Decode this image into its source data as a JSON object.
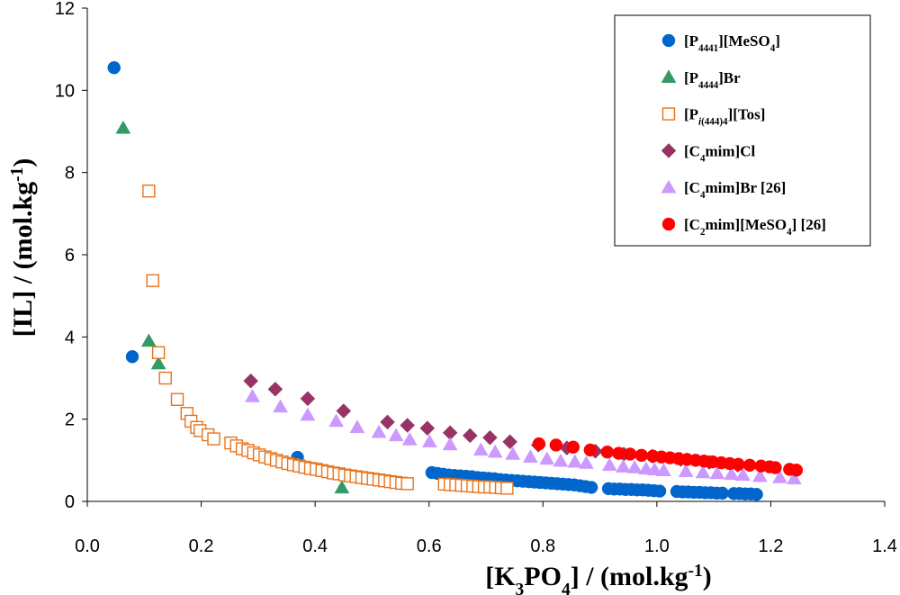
{
  "chart_data": {
    "type": "scatter",
    "title": "",
    "xlabel": {
      "main": "[K",
      "sub": "3",
      "mid": "PO",
      "sub2": "4",
      "tail": "] / (mol.kg",
      "sup": "-1",
      "end": ")"
    },
    "ylabel": {
      "main": "[IL] / (mol.kg",
      "sup": "-1",
      "end": ")"
    },
    "xlim": [
      0,
      1.4
    ],
    "ylim": [
      0,
      12
    ],
    "xticks": [
      "0.0",
      "0.2",
      "0.4",
      "0.6",
      "0.8",
      "1.0",
      "1.2",
      "1.4"
    ],
    "yticks": [
      "0",
      "2",
      "4",
      "6",
      "8",
      "10",
      "12"
    ],
    "grid": false,
    "legend_position": "top-right",
    "series": [
      {
        "name": "[P4441][MeSO4]",
        "label_parts": [
          [
            "[P",
            ""
          ],
          [
            "4441",
            "sub"
          ],
          [
            "][MeSO",
            ""
          ],
          [
            "4",
            "sub"
          ],
          [
            "]",
            ""
          ]
        ],
        "marker": "circle",
        "color": "#0066CC",
        "filled": true,
        "points": [
          [
            0.047,
            10.55
          ],
          [
            0.079,
            3.52
          ],
          [
            0.369,
            1.07
          ],
          [
            0.605,
            0.7
          ],
          [
            0.615,
            0.68
          ],
          [
            0.625,
            0.66
          ],
          [
            0.635,
            0.64
          ],
          [
            0.645,
            0.63
          ],
          [
            0.655,
            0.62
          ],
          [
            0.665,
            0.61
          ],
          [
            0.675,
            0.6
          ],
          [
            0.685,
            0.58
          ],
          [
            0.695,
            0.57
          ],
          [
            0.705,
            0.56
          ],
          [
            0.715,
            0.55
          ],
          [
            0.725,
            0.53
          ],
          [
            0.735,
            0.52
          ],
          [
            0.745,
            0.51
          ],
          [
            0.755,
            0.5
          ],
          [
            0.765,
            0.49
          ],
          [
            0.775,
            0.48
          ],
          [
            0.785,
            0.47
          ],
          [
            0.795,
            0.46
          ],
          [
            0.805,
            0.45
          ],
          [
            0.815,
            0.44
          ],
          [
            0.825,
            0.43
          ],
          [
            0.835,
            0.42
          ],
          [
            0.845,
            0.41
          ],
          [
            0.855,
            0.4
          ],
          [
            0.865,
            0.38
          ],
          [
            0.875,
            0.36
          ],
          [
            0.885,
            0.34
          ],
          [
            0.915,
            0.31
          ],
          [
            0.925,
            0.3
          ],
          [
            0.935,
            0.3
          ],
          [
            0.945,
            0.29
          ],
          [
            0.955,
            0.29
          ],
          [
            0.965,
            0.28
          ],
          [
            0.975,
            0.28
          ],
          [
            0.985,
            0.27
          ],
          [
            0.995,
            0.26
          ],
          [
            1.005,
            0.25
          ],
          [
            1.035,
            0.24
          ],
          [
            1.045,
            0.23
          ],
          [
            1.055,
            0.23
          ],
          [
            1.065,
            0.22
          ],
          [
            1.075,
            0.22
          ],
          [
            1.085,
            0.21
          ],
          [
            1.095,
            0.21
          ],
          [
            1.105,
            0.2
          ],
          [
            1.115,
            0.2
          ],
          [
            1.135,
            0.19
          ],
          [
            1.145,
            0.19
          ],
          [
            1.155,
            0.18
          ],
          [
            1.165,
            0.18
          ],
          [
            1.175,
            0.17
          ]
        ]
      },
      {
        "name": "[P4444]Br",
        "label_parts": [
          [
            "[P",
            ""
          ],
          [
            "4444",
            "sub"
          ],
          [
            "]Br",
            ""
          ]
        ],
        "marker": "triangle",
        "color": "#339966",
        "filled": true,
        "points": [
          [
            0.063,
            9.08
          ],
          [
            0.108,
            3.9
          ],
          [
            0.125,
            3.35
          ],
          [
            0.447,
            0.33
          ]
        ]
      },
      {
        "name": "[Pi(444)4][Tos]",
        "label_parts": [
          [
            "[P",
            ""
          ],
          [
            "i",
            "sub-italic"
          ],
          [
            "(444)4",
            "sub"
          ],
          [
            "][Tos]",
            ""
          ]
        ],
        "marker": "square",
        "color": "#E8731A",
        "filled": false,
        "points": [
          [
            0.108,
            7.55
          ],
          [
            0.115,
            5.37
          ],
          [
            0.125,
            3.62
          ],
          [
            0.137,
            3.0
          ],
          [
            0.158,
            2.48
          ],
          [
            0.175,
            2.14
          ],
          [
            0.182,
            1.95
          ],
          [
            0.192,
            1.8
          ],
          [
            0.198,
            1.72
          ],
          [
            0.212,
            1.62
          ],
          [
            0.222,
            1.52
          ],
          [
            0.252,
            1.42
          ],
          [
            0.262,
            1.35
          ],
          [
            0.272,
            1.28
          ],
          [
            0.282,
            1.24
          ],
          [
            0.292,
            1.18
          ],
          [
            0.302,
            1.13
          ],
          [
            0.312,
            1.08
          ],
          [
            0.322,
            1.04
          ],
          [
            0.332,
            1.0
          ],
          [
            0.342,
            0.96
          ],
          [
            0.352,
            0.92
          ],
          [
            0.362,
            0.89
          ],
          [
            0.372,
            0.86
          ],
          [
            0.382,
            0.83
          ],
          [
            0.392,
            0.8
          ],
          [
            0.402,
            0.78
          ],
          [
            0.412,
            0.75
          ],
          [
            0.422,
            0.72
          ],
          [
            0.432,
            0.69
          ],
          [
            0.442,
            0.67
          ],
          [
            0.452,
            0.64
          ],
          [
            0.462,
            0.62
          ],
          [
            0.472,
            0.6
          ],
          [
            0.482,
            0.58
          ],
          [
            0.492,
            0.56
          ],
          [
            0.502,
            0.54
          ],
          [
            0.512,
            0.52
          ],
          [
            0.522,
            0.5
          ],
          [
            0.532,
            0.48
          ],
          [
            0.542,
            0.46
          ],
          [
            0.552,
            0.44
          ],
          [
            0.562,
            0.43
          ],
          [
            0.627,
            0.42
          ],
          [
            0.637,
            0.41
          ],
          [
            0.647,
            0.4
          ],
          [
            0.657,
            0.39
          ],
          [
            0.667,
            0.38
          ],
          [
            0.677,
            0.37
          ],
          [
            0.687,
            0.36
          ],
          [
            0.697,
            0.35
          ],
          [
            0.707,
            0.35
          ],
          [
            0.717,
            0.34
          ],
          [
            0.727,
            0.33
          ],
          [
            0.737,
            0.32
          ]
        ]
      },
      {
        "name": "[C4mim]Cl",
        "label_parts": [
          [
            "[C",
            ""
          ],
          [
            "4",
            "sub"
          ],
          [
            "mim]Cl",
            ""
          ]
        ],
        "marker": "diamond",
        "color": "#993366",
        "filled": true,
        "points": [
          [
            0.287,
            2.93
          ],
          [
            0.33,
            2.73
          ],
          [
            0.387,
            2.5
          ],
          [
            0.45,
            2.2
          ],
          [
            0.527,
            1.93
          ],
          [
            0.562,
            1.85
          ],
          [
            0.597,
            1.78
          ],
          [
            0.637,
            1.67
          ],
          [
            0.672,
            1.6
          ],
          [
            0.707,
            1.55
          ],
          [
            0.742,
            1.45
          ],
          [
            0.792,
            1.37
          ],
          [
            0.842,
            1.3
          ],
          [
            0.892,
            1.22
          ],
          [
            0.942,
            1.15
          ],
          [
            0.992,
            1.1
          ],
          [
            1.042,
            1.02
          ],
          [
            1.092,
            0.95
          ],
          [
            1.142,
            0.88
          ]
        ]
      },
      {
        "name": "[C4mim]Br [26]",
        "label_parts": [
          [
            "[C",
            ""
          ],
          [
            "4",
            "sub"
          ],
          [
            "mim]Br [26]",
            ""
          ]
        ],
        "marker": "triangle",
        "color": "#CC99FF",
        "filled": true,
        "points": [
          [
            0.29,
            2.55
          ],
          [
            0.339,
            2.3
          ],
          [
            0.387,
            2.1
          ],
          [
            0.437,
            1.95
          ],
          [
            0.474,
            1.8
          ],
          [
            0.512,
            1.68
          ],
          [
            0.542,
            1.6
          ],
          [
            0.566,
            1.5
          ],
          [
            0.601,
            1.45
          ],
          [
            0.637,
            1.38
          ],
          [
            0.691,
            1.25
          ],
          [
            0.716,
            1.2
          ],
          [
            0.747,
            1.15
          ],
          [
            0.778,
            1.08
          ],
          [
            0.807,
            1.03
          ],
          [
            0.831,
            0.98
          ],
          [
            0.856,
            0.96
          ],
          [
            0.876,
            0.93
          ],
          [
            0.917,
            0.88
          ],
          [
            0.941,
            0.84
          ],
          [
            0.961,
            0.82
          ],
          [
            0.981,
            0.79
          ],
          [
            0.996,
            0.77
          ],
          [
            1.012,
            0.75
          ],
          [
            1.051,
            0.73
          ],
          [
            1.081,
            0.7
          ],
          [
            1.106,
            0.68
          ],
          [
            1.131,
            0.66
          ],
          [
            1.151,
            0.64
          ],
          [
            1.181,
            0.61
          ],
          [
            1.216,
            0.58
          ],
          [
            1.241,
            0.55
          ]
        ]
      },
      {
        "name": "[C2mim][MeSO4] [26]",
        "label_parts": [
          [
            "[C",
            ""
          ],
          [
            "2",
            "sub"
          ],
          [
            "mim][MeSO",
            ""
          ],
          [
            "4",
            "sub"
          ],
          [
            "] [26]",
            ""
          ]
        ],
        "marker": "circle",
        "color": "#FF0000",
        "filled": true,
        "points": [
          [
            0.793,
            1.4
          ],
          [
            0.823,
            1.37
          ],
          [
            0.853,
            1.32
          ],
          [
            0.883,
            1.25
          ],
          [
            0.913,
            1.2
          ],
          [
            0.933,
            1.17
          ],
          [
            0.953,
            1.15
          ],
          [
            0.973,
            1.12
          ],
          [
            0.993,
            1.1
          ],
          [
            1.008,
            1.08
          ],
          [
            1.023,
            1.06
          ],
          [
            1.038,
            1.04
          ],
          [
            1.053,
            1.02
          ],
          [
            1.068,
            1.0
          ],
          [
            1.083,
            0.98
          ],
          [
            1.098,
            0.96
          ],
          [
            1.113,
            0.94
          ],
          [
            1.128,
            0.92
          ],
          [
            1.143,
            0.9
          ],
          [
            1.163,
            0.88
          ],
          [
            1.183,
            0.86
          ],
          [
            1.198,
            0.84
          ],
          [
            1.208,
            0.82
          ],
          [
            1.233,
            0.78
          ],
          [
            1.245,
            0.76
          ]
        ]
      }
    ]
  }
}
